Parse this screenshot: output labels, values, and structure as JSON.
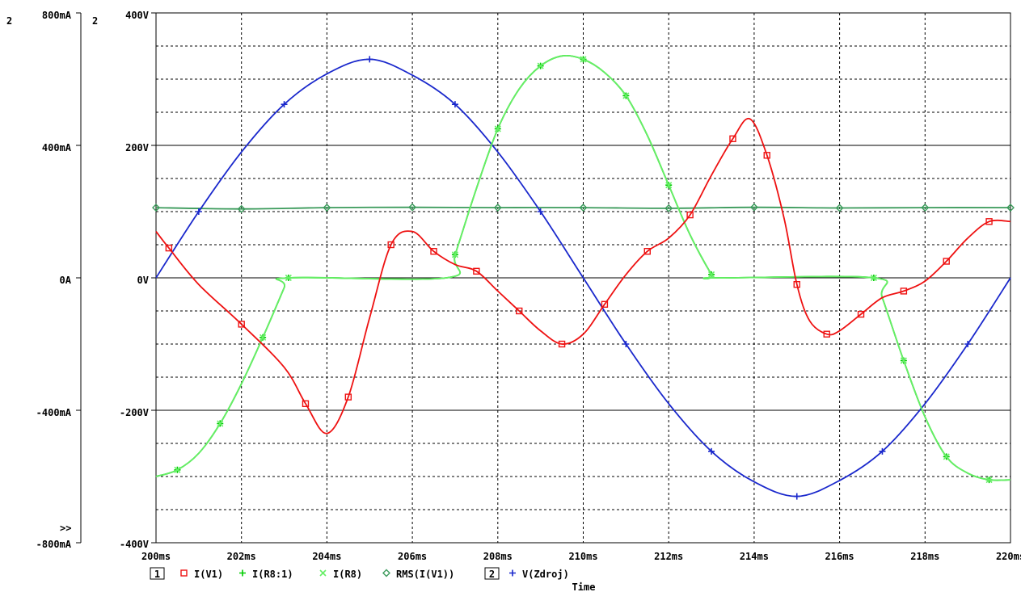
{
  "chart_data": {
    "type": "line",
    "xlabel": "Time",
    "xlim": [
      200,
      220
    ],
    "x_ticks": [
      "200ms",
      "202ms",
      "204ms",
      "206ms",
      "208ms",
      "210ms",
      "212ms",
      "214ms",
      "216ms",
      "218ms",
      "220ms"
    ],
    "grid": true,
    "axes": [
      {
        "id": "1",
        "label_number": "2",
        "unit": "A",
        "ylim": [
          -0.8,
          0.8
        ],
        "tick_labels": [
          "800mA",
          "400mA",
          "0A",
          "-400mA",
          "-800mA"
        ]
      },
      {
        "id": "2",
        "label_number": "2",
        "unit": "V",
        "ylim": [
          -400,
          400
        ],
        "tick_labels": [
          "400V",
          "200V",
          "0V",
          "-200V",
          "-400V"
        ]
      }
    ],
    "legend_axis1_marker": "1",
    "legend_axis2_marker": "2",
    "overflow_marker": ">>",
    "series": [
      {
        "name": "I(V1)",
        "axis": "1",
        "color": "#ee1111",
        "marker": "square",
        "x": [
          200,
          200.3,
          201,
          202,
          203,
          203.5,
          204,
          204.5,
          205,
          205.5,
          206,
          206.5,
          207,
          207.5,
          208,
          208.5,
          209,
          209.5,
          210,
          210.5,
          211,
          211.5,
          212,
          212.5,
          213,
          213.5,
          213.9,
          214.3,
          214.7,
          215,
          215.3,
          215.7,
          216,
          216.5,
          217,
          217.5,
          218,
          218.5,
          219,
          219.5,
          220
        ],
        "y": [
          0.14,
          0.09,
          -0.02,
          -0.14,
          -0.27,
          -0.38,
          -0.47,
          -0.36,
          -0.12,
          0.1,
          0.14,
          0.08,
          0.04,
          0.02,
          -0.04,
          -0.1,
          -0.16,
          -0.2,
          -0.17,
          -0.08,
          0.01,
          0.08,
          0.12,
          0.19,
          0.31,
          0.42,
          0.48,
          0.37,
          0.18,
          -0.02,
          -0.13,
          -0.17,
          -0.16,
          -0.11,
          -0.06,
          -0.04,
          -0.01,
          0.05,
          0.12,
          0.17,
          0.17
        ]
      },
      {
        "name": "I(R8:1)",
        "axis": "1",
        "color": "#00cc00",
        "marker": "plus",
        "x": [
          200,
          200.5,
          201,
          201.5,
          202,
          202.5,
          203,
          203.1,
          206.8,
          207,
          207.5,
          208,
          208.5,
          209,
          209.5,
          210,
          210.5,
          211,
          211.5,
          212,
          212.5,
          213,
          213.1,
          216.8,
          217,
          217.5,
          218,
          218.5,
          219,
          219.5,
          220
        ],
        "y": [
          -0.6,
          -0.58,
          -0.53,
          -0.44,
          -0.32,
          -0.18,
          -0.03,
          0,
          0,
          0.07,
          0.27,
          0.45,
          0.57,
          0.64,
          0.67,
          0.66,
          0.62,
          0.55,
          0.43,
          0.28,
          0.13,
          0.01,
          0,
          0,
          -0.06,
          -0.25,
          -0.42,
          -0.54,
          -0.59,
          -0.61,
          -0.61
        ]
      },
      {
        "name": "I(R8)",
        "axis": "1",
        "color": "#66ee66",
        "marker": "x",
        "x": [
          200,
          200.5,
          201,
          201.5,
          202,
          202.5,
          203,
          203.1,
          206.8,
          207,
          207.5,
          208,
          208.5,
          209,
          209.5,
          210,
          210.5,
          211,
          211.5,
          212,
          212.5,
          213,
          213.1,
          216.8,
          217,
          217.5,
          218,
          218.5,
          219,
          219.5,
          220
        ],
        "y": [
          -0.6,
          -0.58,
          -0.53,
          -0.44,
          -0.32,
          -0.18,
          -0.03,
          0,
          0,
          0.07,
          0.27,
          0.45,
          0.57,
          0.64,
          0.67,
          0.66,
          0.62,
          0.55,
          0.43,
          0.28,
          0.13,
          0.01,
          0,
          0,
          -0.06,
          -0.25,
          -0.42,
          -0.54,
          -0.59,
          -0.61,
          -0.61
        ]
      },
      {
        "name": "RMS(I(V1))",
        "axis": "1",
        "color": "#3a9a5a",
        "marker": "diamond",
        "x": [
          200,
          202,
          204,
          206,
          208,
          210,
          212,
          214,
          216,
          218,
          220
        ],
        "y": [
          0.212,
          0.208,
          0.212,
          0.213,
          0.212,
          0.212,
          0.21,
          0.213,
          0.211,
          0.212,
          0.212
        ]
      },
      {
        "name": "V(Zdroj)",
        "axis": "2",
        "color": "#1a28cc",
        "marker": "plus",
        "x": [
          200,
          201,
          202,
          203,
          204,
          205,
          206,
          207,
          208,
          209,
          210,
          211,
          212,
          213,
          214,
          215,
          216,
          217,
          218,
          219,
          220
        ],
        "y": [
          0,
          100,
          190,
          262,
          308,
          330,
          306,
          262,
          190,
          100,
          0,
          -100,
          -190,
          -262,
          -308,
          -330,
          -306,
          -262,
          -190,
          -100,
          0
        ]
      }
    ]
  }
}
